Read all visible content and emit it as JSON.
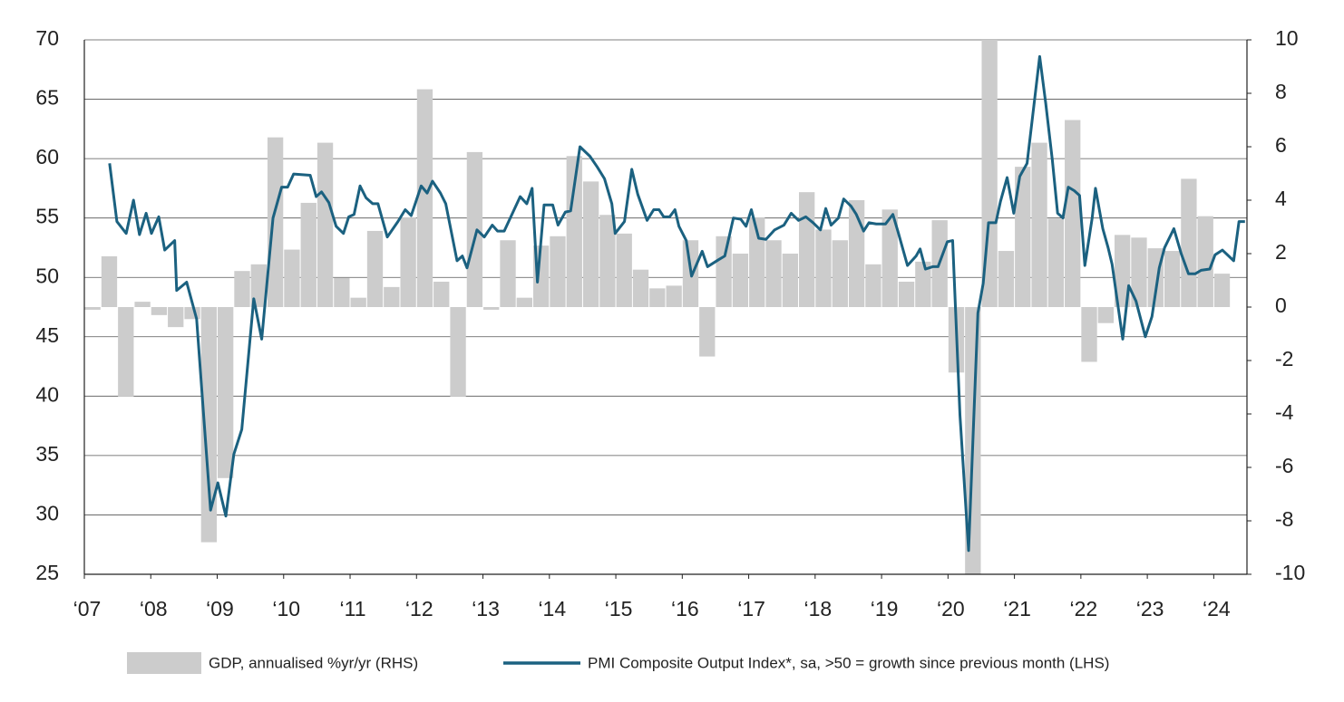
{
  "chart_data": {
    "type": "combo",
    "grid": true,
    "xlim": [
      2007,
      2024.5
    ],
    "xticks": [
      {
        "value": 2007,
        "label": "‘07"
      },
      {
        "value": 2008,
        "label": "‘08"
      },
      {
        "value": 2009,
        "label": "‘09"
      },
      {
        "value": 2010,
        "label": "‘10"
      },
      {
        "value": 2011,
        "label": "‘11"
      },
      {
        "value": 2012,
        "label": "‘12"
      },
      {
        "value": 2013,
        "label": "‘13"
      },
      {
        "value": 2014,
        "label": "‘14"
      },
      {
        "value": 2015,
        "label": "‘15"
      },
      {
        "value": 2016,
        "label": "‘16"
      },
      {
        "value": 2017,
        "label": "‘17"
      },
      {
        "value": 2018,
        "label": "‘18"
      },
      {
        "value": 2019,
        "label": "‘19"
      },
      {
        "value": 2020,
        "label": "‘20"
      },
      {
        "value": 2021,
        "label": "‘21"
      },
      {
        "value": 2022,
        "label": "‘22"
      },
      {
        "value": 2023,
        "label": "‘23"
      },
      {
        "value": 2024,
        "label": "‘24"
      }
    ],
    "ylim": [
      25,
      70
    ],
    "yticks": [
      25,
      30,
      35,
      40,
      45,
      50,
      55,
      60,
      65,
      70
    ],
    "y2lim": [
      -10,
      10
    ],
    "y2ticks": [
      -10,
      -8,
      -6,
      -4,
      -2,
      0,
      2,
      4,
      6,
      8,
      10
    ],
    "series": [
      {
        "name": "GDP, annualised %yr/yr (RHS)",
        "type": "bar",
        "axis": "y2",
        "color": "#cccccc",
        "x": [
          2007,
          2007.25,
          2007.5,
          2007.75,
          2008,
          2008.25,
          2008.5,
          2008.75,
          2009,
          2009.25,
          2009.5,
          2009.75,
          2010,
          2010.25,
          2010.5,
          2010.75,
          2011,
          2011.25,
          2011.5,
          2011.75,
          2012,
          2012.25,
          2012.5,
          2012.75,
          2013,
          2013.25,
          2013.5,
          2013.75,
          2014,
          2014.25,
          2014.5,
          2014.75,
          2015,
          2015.25,
          2015.5,
          2015.75,
          2016,
          2016.25,
          2016.5,
          2016.75,
          2017,
          2017.25,
          2017.5,
          2017.75,
          2018,
          2018.25,
          2018.5,
          2018.75,
          2019,
          2019.25,
          2019.5,
          2019.75,
          2020,
          2020.25,
          2020.5,
          2020.75,
          2021,
          2021.25,
          2021.5,
          2021.75,
          2022,
          2022.25,
          2022.5,
          2022.75,
          2023,
          2023.25,
          2023.5,
          2023.75,
          2024
        ],
        "values": [
          -0.1,
          1.9,
          -3.35,
          0.2,
          -0.3,
          -0.75,
          -0.45,
          -8.8,
          -6.4,
          1.35,
          1.6,
          6.35,
          2.15,
          3.9,
          6.15,
          1.1,
          0.35,
          2.85,
          0.75,
          3.35,
          8.15,
          0.95,
          -3.35,
          5.8,
          -0.1,
          2.5,
          0.35,
          2.3,
          2.65,
          5.65,
          4.7,
          3.45,
          2.75,
          1.4,
          0.7,
          0.8,
          2.5,
          -1.85,
          2.65,
          2.0,
          3.35,
          2.5,
          2.0,
          4.3,
          2.9,
          2.5,
          4.0,
          1.6,
          3.65,
          0.95,
          1.7,
          3.25,
          -2.45,
          -10,
          10,
          2.1,
          5.25,
          6.15,
          3.3,
          7.0,
          -2.05,
          -0.6,
          2.7,
          2.6,
          2.2,
          2.1,
          4.8,
          3.4,
          1.25
        ]
      },
      {
        "name": "PMI Composite Output Index*, sa, >50 = growth since previous month (LHS)",
        "type": "line",
        "color": "#1b6180",
        "x": [
          2007.38,
          2007.49,
          2007.63,
          2007.74,
          2007.83,
          2007.93,
          2008.01,
          2008.12,
          2008.21,
          2008.36,
          2008.39,
          2008.54,
          2008.69,
          2008.9,
          2009.01,
          2009.13,
          2009.25,
          2009.37,
          2009.55,
          2009.67,
          2009.84,
          2009.97,
          2010.06,
          2010.15,
          2010.4,
          2010.49,
          2010.57,
          2010.68,
          2010.79,
          2010.9,
          2010.98,
          2011.06,
          2011.15,
          2011.24,
          2011.34,
          2011.42,
          2011.56,
          2011.72,
          2011.83,
          2011.92,
          2012.07,
          2012.16,
          2012.24,
          2012.36,
          2012.44,
          2012.61,
          2012.69,
          2012.76,
          2012.91,
          2013.02,
          2013.14,
          2013.22,
          2013.32,
          2013.56,
          2013.66,
          2013.74,
          2013.82,
          2013.92,
          2014.05,
          2014.13,
          2014.24,
          2014.32,
          2014.46,
          2014.61,
          2014.72,
          2014.83,
          2014.94,
          2014.99,
          2015.13,
          2015.24,
          2015.33,
          2015.47,
          2015.57,
          2015.65,
          2015.72,
          2015.81,
          2015.89,
          2015.95,
          2016.06,
          2016.14,
          2016.3,
          2016.38,
          2016.55,
          2016.64,
          2016.77,
          2016.88,
          2016.96,
          2017.04,
          2017.15,
          2017.26,
          2017.39,
          2017.53,
          2017.64,
          2017.75,
          2017.86,
          2017.97,
          2018.08,
          2018.16,
          2018.24,
          2018.35,
          2018.43,
          2018.54,
          2018.62,
          2018.73,
          2018.81,
          2018.92,
          2019.06,
          2019.17,
          2019.25,
          2019.39,
          2019.52,
          2019.58,
          2019.66,
          2019.77,
          2019.85,
          2019.99,
          2020.07,
          2020.18,
          2020.31,
          2020.45,
          2020.53,
          2020.61,
          2020.72,
          2020.79,
          2020.89,
          2020.99,
          2021.08,
          2021.19,
          2021.38,
          2021.47,
          2021.57,
          2021.65,
          2021.73,
          2021.81,
          2021.9,
          2021.98,
          2022.06,
          2022.17,
          2022.22,
          2022.33,
          2022.41,
          2022.47,
          2022.63,
          2022.72,
          2022.83,
          2022.97,
          2023.07,
          2023.18,
          2023.26,
          2023.4,
          2023.51,
          2023.62,
          2023.72,
          2023.81,
          2023.94,
          2024.02,
          2024.13,
          2024.3,
          2024.38,
          2024.47
        ],
        "values": [
          59.6,
          54.7,
          53.7,
          56.5,
          53.6,
          55.4,
          53.7,
          55.1,
          52.3,
          53.1,
          48.9,
          49.6,
          46.5,
          30.4,
          32.7,
          29.9,
          35.1,
          37.2,
          48.2,
          44.8,
          55.0,
          57.6,
          57.6,
          58.7,
          58.6,
          56.8,
          57.2,
          56.3,
          54.3,
          53.7,
          55.1,
          55.3,
          57.7,
          56.7,
          56.2,
          56.2,
          53.4,
          54.7,
          55.7,
          55.2,
          57.7,
          57.1,
          58.1,
          57.1,
          56.2,
          51.4,
          51.8,
          50.8,
          54.0,
          53.4,
          54.4,
          53.9,
          53.9,
          56.8,
          56.2,
          57.5,
          49.6,
          56.1,
          56.1,
          54.4,
          55.5,
          55.6,
          61.0,
          60.2,
          59.3,
          58.3,
          56.2,
          53.7,
          54.7,
          59.1,
          57.0,
          54.8,
          55.7,
          55.7,
          55.1,
          55.1,
          55.7,
          54.3,
          53.1,
          50.1,
          52.2,
          50.9,
          51.5,
          51.8,
          55.0,
          54.9,
          54.3,
          55.7,
          53.3,
          53.2,
          54.0,
          54.4,
          55.4,
          54.8,
          55.1,
          54.6,
          54.0,
          55.8,
          54.4,
          55.0,
          56.6,
          56.0,
          55.3,
          53.9,
          54.6,
          54.5,
          54.5,
          55.3,
          53.8,
          51.0,
          51.8,
          52.4,
          50.7,
          50.9,
          50.9,
          53.0,
          53.1,
          38.4,
          27.0,
          47.0,
          49.5,
          54.6,
          54.6,
          56.4,
          58.4,
          55.4,
          58.5,
          59.6,
          68.6,
          64.7,
          59.9,
          55.4,
          55.0,
          57.6,
          57.3,
          56.9,
          51.0,
          55.0,
          57.5,
          54.1,
          52.5,
          51.1,
          44.8,
          49.3,
          48.0,
          45.0,
          46.7,
          50.8,
          52.5,
          54.1,
          52.0,
          50.3,
          50.3,
          50.6,
          50.7,
          51.9,
          52.3,
          51.4,
          54.7,
          54.7
        ]
      }
    ]
  }
}
